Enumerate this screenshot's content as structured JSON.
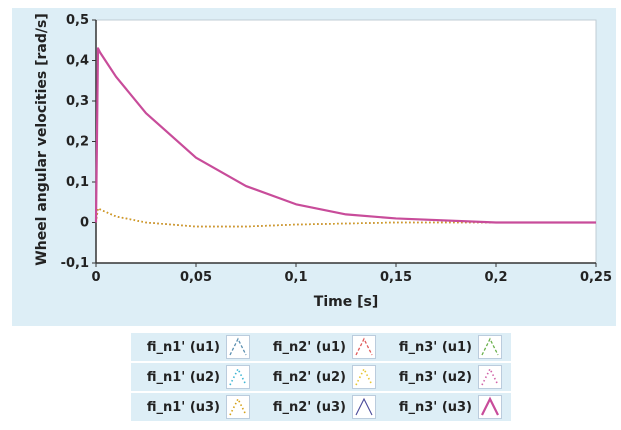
{
  "chart_data": {
    "type": "line",
    "title": "",
    "xlabel": "Time [s]",
    "ylabel": "Wheel angular velocities [rad/s]",
    "xlim": [
      0,
      0.25
    ],
    "ylim": [
      -0.1,
      0.5
    ],
    "xticks": [
      "0",
      "0,05",
      "0,1",
      "0,15",
      "0,2",
      "0,25"
    ],
    "yticks": [
      "-0,1",
      "0",
      "0,1",
      "0,2",
      "0,3",
      "0,4",
      "0,5"
    ],
    "grid": false,
    "legend_position": "bottom",
    "series": [
      {
        "name": "fi_n1' (u1)",
        "color": "#5b8fb0",
        "style": "dashed",
        "x": [
          0,
          0.001,
          0.002,
          0.01,
          0.025,
          0.05,
          0.075,
          0.1,
          0.125,
          0.15,
          0.2,
          0.25
        ],
        "y": [
          0,
          0.43,
          0.42,
          0.36,
          0.27,
          0.16,
          0.09,
          0.045,
          0.02,
          0.01,
          0.0,
          0.0
        ]
      },
      {
        "name": "fi_n2' (u1)",
        "color": "#e05a5a",
        "style": "dashed",
        "x": [
          0,
          0.001,
          0.002,
          0.01,
          0.025,
          0.05,
          0.075,
          0.1,
          0.125,
          0.15,
          0.2,
          0.25
        ],
        "y": [
          0,
          0.43,
          0.42,
          0.36,
          0.27,
          0.16,
          0.09,
          0.045,
          0.02,
          0.01,
          0.0,
          0.0
        ]
      },
      {
        "name": "fi_n3' (u1)",
        "color": "#6ab04c",
        "style": "dashed",
        "x": [
          0,
          0.001,
          0.002,
          0.01,
          0.025,
          0.05,
          0.075,
          0.1,
          0.125,
          0.15,
          0.2,
          0.25
        ],
        "y": [
          0,
          0.43,
          0.42,
          0.36,
          0.27,
          0.16,
          0.09,
          0.045,
          0.02,
          0.01,
          0.0,
          0.0
        ]
      },
      {
        "name": "fi_n1' (u2)",
        "color": "#3fb6d3",
        "style": "dotted",
        "x": [
          0,
          0.001,
          0.003,
          0.01,
          0.025,
          0.05,
          0.075,
          0.1,
          0.15,
          0.2,
          0.25
        ],
        "y": [
          0,
          0.035,
          0.03,
          0.015,
          0.0,
          -0.01,
          -0.01,
          -0.005,
          0.0,
          0.0,
          0.0
        ]
      },
      {
        "name": "fi_n2' (u2)",
        "color": "#e6c531",
        "style": "dotted",
        "x": [
          0,
          0.001,
          0.003,
          0.01,
          0.025,
          0.05,
          0.075,
          0.1,
          0.15,
          0.2,
          0.25
        ],
        "y": [
          0,
          0.035,
          0.03,
          0.015,
          0.0,
          -0.01,
          -0.01,
          -0.005,
          0.0,
          0.0,
          0.0
        ]
      },
      {
        "name": "fi_n3' (u2)",
        "color": "#d163a8",
        "style": "dotted",
        "x": [
          0,
          0.001,
          0.003,
          0.01,
          0.025,
          0.05,
          0.075,
          0.1,
          0.15,
          0.2,
          0.25
        ],
        "y": [
          0,
          0.035,
          0.03,
          0.015,
          0.0,
          -0.01,
          -0.01,
          -0.005,
          0.0,
          0.0,
          0.0
        ]
      },
      {
        "name": "fi_n1' (u3)",
        "color": "#d4a017",
        "style": "dotted",
        "x": [
          0,
          0.001,
          0.003,
          0.01,
          0.025,
          0.05,
          0.075,
          0.1,
          0.15,
          0.2,
          0.25
        ],
        "y": [
          0,
          0.035,
          0.03,
          0.015,
          0.0,
          -0.01,
          -0.01,
          -0.005,
          0.0,
          0.0,
          0.0
        ]
      },
      {
        "name": "fi_n2' (u3)",
        "color": "#4a4a9a",
        "style": "solid",
        "x": [
          0,
          0.001,
          0.002,
          0.01,
          0.025,
          0.05,
          0.075,
          0.1,
          0.125,
          0.15,
          0.2,
          0.25
        ],
        "y": [
          0,
          0.43,
          0.42,
          0.36,
          0.27,
          0.16,
          0.09,
          0.045,
          0.02,
          0.01,
          0.0,
          0.0
        ]
      },
      {
        "name": "fi_n3' (u3)",
        "color": "#c84c9a",
        "style": "thick",
        "x": [
          0,
          0.001,
          0.002,
          0.01,
          0.025,
          0.05,
          0.075,
          0.1,
          0.125,
          0.15,
          0.2,
          0.25
        ],
        "y": [
          0,
          0.43,
          0.42,
          0.36,
          0.27,
          0.16,
          0.09,
          0.045,
          0.02,
          0.01,
          0.0,
          0.0
        ]
      }
    ]
  }
}
